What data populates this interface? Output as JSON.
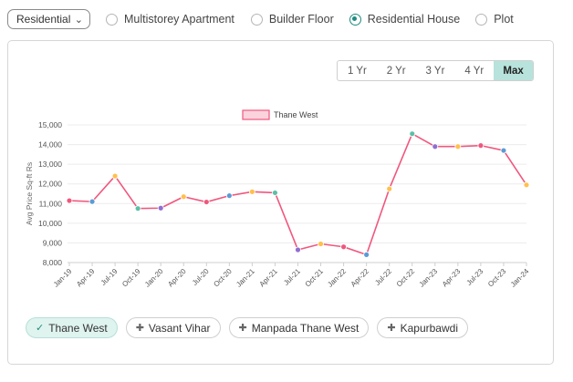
{
  "filters": {
    "property_type_select": "Residential",
    "radio_options": [
      {
        "label": "Multistorey Apartment",
        "selected": false
      },
      {
        "label": "Builder Floor",
        "selected": false
      },
      {
        "label": "Residential House",
        "selected": true
      },
      {
        "label": "Plot",
        "selected": false
      }
    ]
  },
  "periods": [
    {
      "label": "1 Yr",
      "active": false
    },
    {
      "label": "2 Yr",
      "active": false
    },
    {
      "label": "3 Yr",
      "active": false
    },
    {
      "label": "4 Yr",
      "active": false
    },
    {
      "label": "Max",
      "active": true
    }
  ],
  "chips": [
    {
      "label": "Thane West",
      "active": true,
      "icon": "check-icon"
    },
    {
      "label": "Vasant Vihar",
      "active": false,
      "icon": "plus-icon"
    },
    {
      "label": "Manpada Thane West",
      "active": false,
      "icon": "plus-icon"
    },
    {
      "label": "Kapurbawdi",
      "active": false,
      "icon": "plus-icon"
    }
  ],
  "colors": {
    "accent": "#1e8c7e",
    "line": "#f0577d",
    "legend_fill": "#fbd3dc",
    "point_blue": "#5b9bd5",
    "point_orange": "#ffc04d",
    "point_purple": "#8e6fd1",
    "point_teal": "#5cc0a8"
  },
  "chart_data": {
    "type": "line",
    "title": "",
    "xlabel": "",
    "ylabel": "Avg Price Sq-ft Rs",
    "ylim": [
      8000,
      15000
    ],
    "yticks": [
      "8,000",
      "9,000",
      "10,000",
      "11,000",
      "12,000",
      "13,000",
      "14,000",
      "15,000"
    ],
    "grid": true,
    "legend_position": "top-center",
    "categories": [
      "Jan-19",
      "Apr-19",
      "Jul-19",
      "Oct-19",
      "Jan-20",
      "Apr-20",
      "Jul-20",
      "Oct-20",
      "Jan-21",
      "Apr-21",
      "Jul-21",
      "Oct-21",
      "Jan-22",
      "Apr-22",
      "Jul-22",
      "Oct-22",
      "Jan-23",
      "Apr-23",
      "Jul-23",
      "Oct-23",
      "Jan-24"
    ],
    "series": [
      {
        "name": "Thane West",
        "values": [
          11150,
          11100,
          12400,
          10750,
          10770,
          11350,
          11080,
          11400,
          11600,
          11550,
          8650,
          8950,
          8800,
          8400,
          11750,
          14550,
          13900,
          13900,
          13950,
          13700,
          11950
        ],
        "point_colors": [
          "#f0577d",
          "#5b9bd5",
          "#ffc04d",
          "#5cc0a8",
          "#8e6fd1",
          "#ffc04d",
          "#f0577d",
          "#5b9bd5",
          "#ffc04d",
          "#5cc0a8",
          "#8e6fd1",
          "#ffc04d",
          "#f0577d",
          "#5b9bd5",
          "#ffc04d",
          "#5cc0a8",
          "#8e6fd1",
          "#ffc04d",
          "#f0577d",
          "#5b9bd5",
          "#ffc04d"
        ]
      }
    ]
  }
}
